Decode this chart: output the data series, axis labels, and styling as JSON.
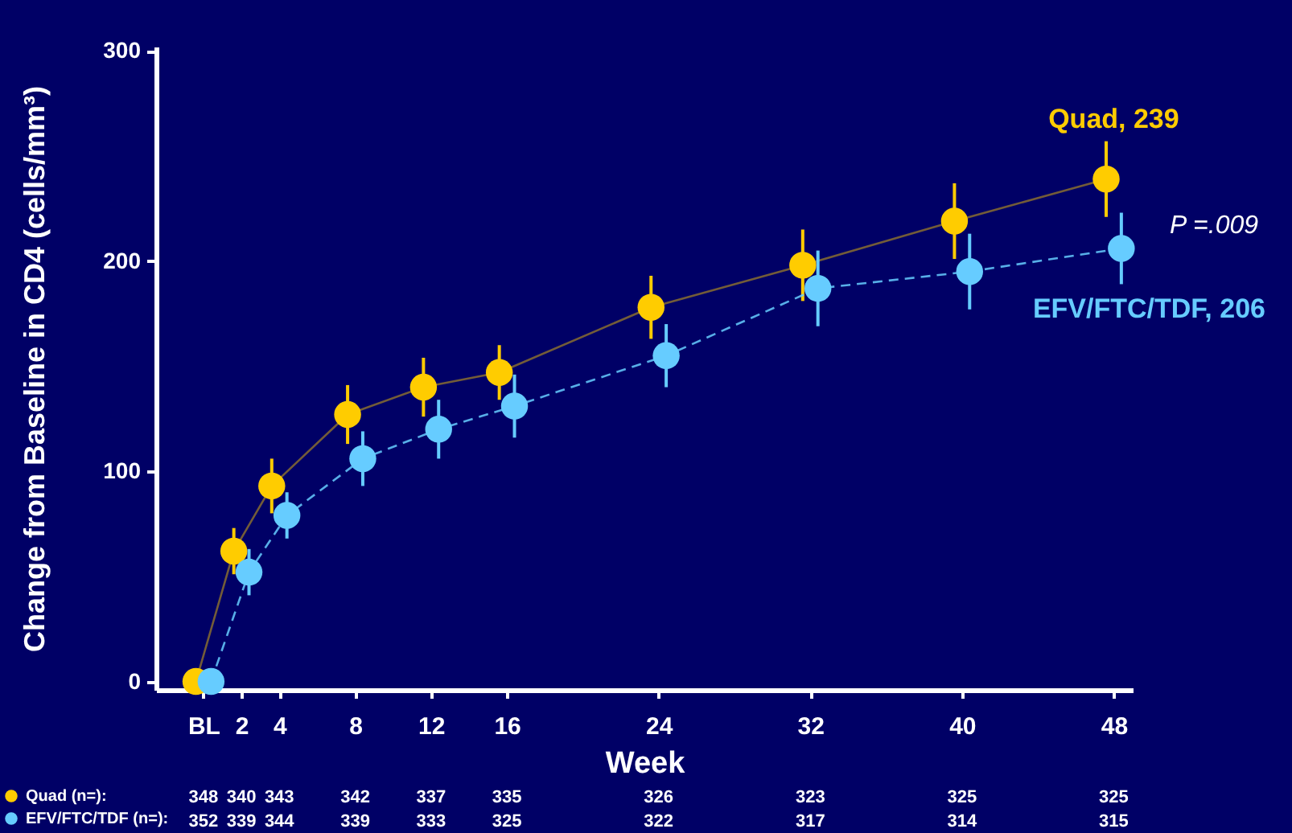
{
  "chart_data": {
    "type": "line",
    "xlabel": "Week",
    "ylabel": "Change from Baseline in CD4 (cells/mm³)",
    "xlim": [
      -2.5,
      49
    ],
    "ylim": [
      -4,
      302
    ],
    "xticks": [
      {
        "value": 0,
        "label": "BL"
      },
      2,
      4,
      8,
      12,
      16,
      24,
      32,
      40,
      48
    ],
    "yticks": [
      0,
      100,
      200,
      300
    ],
    "marker": "circle",
    "legend": "bottom left",
    "series": [
      {
        "name": "Quad (n=):",
        "color": "#ffcc00",
        "line_style": "solid",
        "x": [
          -0.4,
          1.6,
          3.6,
          7.6,
          11.6,
          15.6,
          23.6,
          31.6,
          39.6,
          47.6
        ],
        "values": [
          0,
          62,
          93,
          127,
          140,
          147,
          178,
          198,
          219,
          239
        ],
        "errors": [
          null,
          11,
          13,
          14,
          14,
          13,
          15,
          17,
          18,
          18
        ]
      },
      {
        "name": "EFV/FTC/TDF (n=):",
        "color": "#66ccff",
        "line_style": "dashed",
        "x": [
          0.4,
          2.4,
          4.4,
          8.4,
          12.4,
          16.4,
          24.4,
          32.4,
          40.4,
          48.4
        ],
        "values": [
          0,
          52,
          79,
          106,
          120,
          131,
          155,
          187,
          195,
          206
        ],
        "errors": [
          null,
          11,
          11,
          13,
          14,
          15,
          15,
          18,
          18,
          17
        ]
      }
    ],
    "annotations": [
      {
        "text": "Quad, 239",
        "x": 48,
        "y": 239
      },
      {
        "text": "EFV/FTC/TDF, 206",
        "x": 48,
        "y": 206
      },
      "P =.009",
      "348",
      "340",
      "343",
      "342",
      "337",
      "335",
      "326",
      "323",
      "325",
      "325",
      "352",
      "339",
      "344",
      "339",
      "333",
      "325",
      "322",
      "317",
      "314",
      "315"
    ]
  }
}
